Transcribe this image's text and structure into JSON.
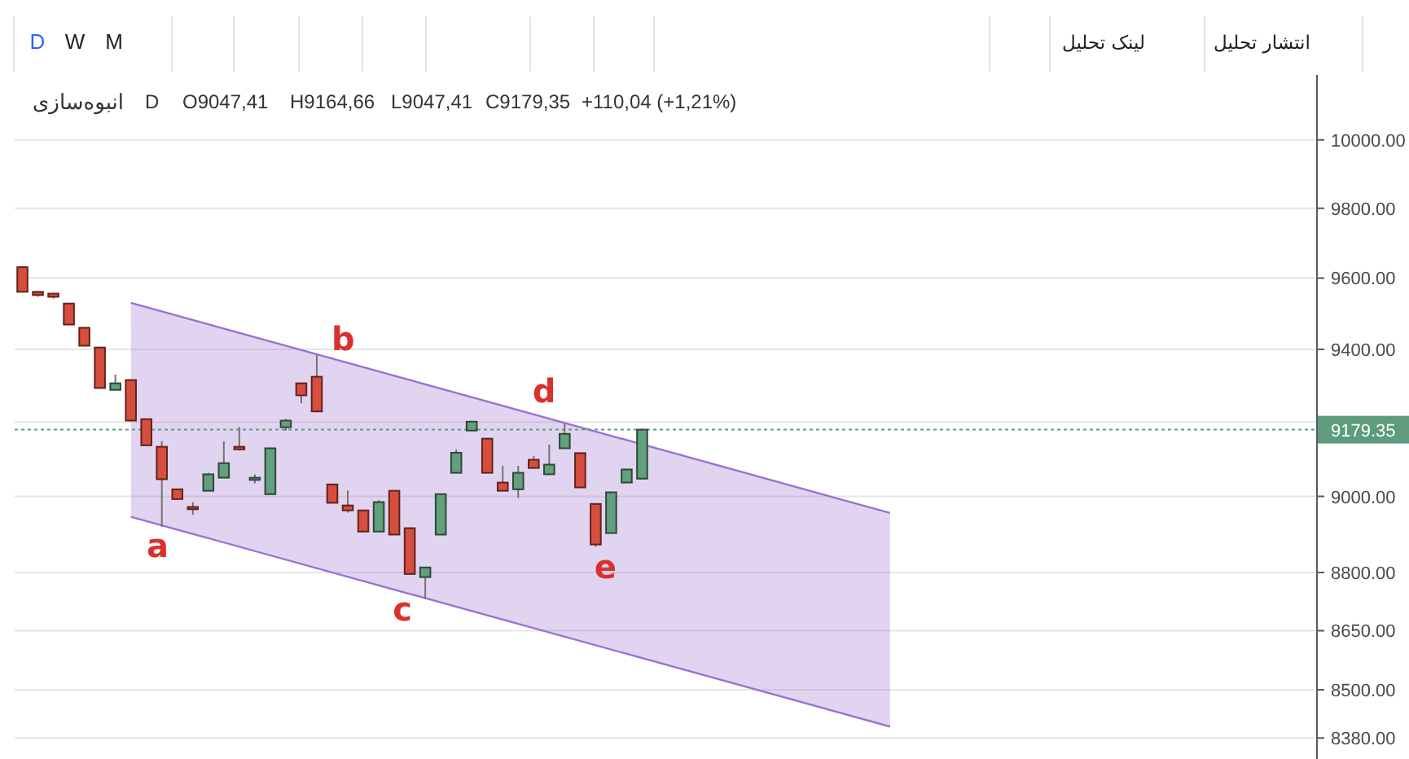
{
  "chart_data": {
    "type": "candlestick",
    "title": "انبوه‌سازی",
    "subtitle": "D",
    "annotations": [
      "O9047,41",
      "H9164,66",
      "L9047,41",
      "C9179,35",
      "+110,04 (+1,21%)",
      "D",
      "W",
      "M",
      "لینک تحلیل",
      "انتشار تحلیل",
      "a",
      "b",
      "c",
      "d",
      "e"
    ],
    "categories": [
      null,
      null,
      null,
      null,
      null,
      null,
      null,
      null,
      null,
      null,
      null,
      null,
      null,
      null,
      null,
      null,
      null,
      null,
      null,
      null,
      null,
      null,
      null,
      null,
      null,
      null,
      null,
      null,
      null,
      null,
      null,
      null,
      null,
      null,
      null,
      null,
      null,
      null,
      null,
      null,
      null,
      null,
      null,
      null,
      null,
      null,
      null,
      null,
      null,
      null,
      null,
      null,
      null,
      null,
      null,
      null,
      null,
      null,
      null,
      null,
      null,
      null,
      null,
      null,
      null,
      null,
      null,
      null,
      null,
      null,
      null,
      null,
      null,
      null,
      null,
      null,
      null,
      null,
      null,
      null,
      null,
      null,
      null,
      null
    ],
    "ohlc": [
      [
        9631,
        9631,
        9561,
        9561
      ],
      [
        9561,
        9561,
        9547,
        9552
      ],
      [
        9556,
        9556,
        9542,
        9547
      ],
      [
        9528,
        9528,
        9469,
        9469
      ],
      [
        9460,
        9460,
        9410,
        9410
      ],
      [
        9405,
        9405,
        9293,
        9293
      ],
      [
        9288,
        9330,
        9288,
        9306
      ],
      [
        9315,
        9315,
        9204,
        9204
      ],
      [
        9208,
        9208,
        9137,
        9137
      ],
      [
        9133,
        9148,
        8920,
        9046
      ],
      [
        9019,
        9019,
        8993,
        8993
      ],
      [
        8972,
        8985,
        8951,
        8966
      ],
      [
        9015,
        9063,
        9015,
        9059
      ],
      [
        9050,
        9148,
        9050,
        9089
      ],
      [
        9133,
        9186,
        9123,
        9126
      ],
      [
        9044,
        9059,
        9035,
        9050
      ],
      [
        9006,
        9129,
        9006,
        9129
      ],
      [
        9186,
        9209,
        9177,
        9204
      ],
      [
        9306,
        9306,
        9251,
        9273
      ],
      [
        9324,
        9384,
        9229,
        9229
      ],
      [
        9032,
        9032,
        8983,
        8983
      ],
      [
        8976,
        9016,
        8957,
        8963
      ],
      [
        8963,
        8963,
        8907,
        8907
      ],
      [
        8907,
        8990,
        8907,
        8985
      ],
      [
        9015,
        9015,
        8899,
        8899
      ],
      [
        8916,
        8916,
        8796,
        8796
      ],
      [
        8788,
        8813,
        8732,
        8813
      ],
      [
        8899,
        9006,
        8899,
        9006
      ],
      [
        9063,
        9126,
        9063,
        9117
      ],
      [
        9177,
        9204,
        9177,
        9201
      ],
      [
        9155,
        9155,
        9063,
        9063
      ],
      [
        9037,
        9082,
        9015,
        9015
      ],
      [
        9019,
        9082,
        8996,
        9063
      ],
      [
        9098,
        9108,
        9076,
        9076
      ],
      [
        9059,
        9139,
        9059,
        9085
      ],
      [
        9129,
        9196,
        9129,
        9168
      ],
      [
        9116,
        9116,
        9024,
        9024
      ],
      [
        8980,
        8980,
        8867,
        8873
      ],
      [
        8903,
        9011,
        8903,
        9011
      ],
      [
        9037,
        9072,
        9037,
        9072
      ],
      [
        9047.41,
        9179.35,
        9047.41,
        9179.35
      ],
      null,
      null,
      null,
      null,
      null,
      null,
      null,
      null,
      null,
      null,
      null,
      null,
      null,
      null,
      null,
      null,
      null,
      null,
      null,
      null,
      null,
      null,
      null,
      null,
      null,
      null,
      null,
      null,
      null,
      null,
      null,
      null,
      null,
      null,
      null,
      null,
      null,
      null,
      null,
      null,
      null,
      null,
      null
    ],
    "colors": [
      "#d64e3e",
      "#d64e3e",
      "#d64e3e",
      "#d64e3e",
      "#d64e3e",
      "#d64e3e",
      "#63a07d",
      "#d64e3e",
      "#d64e3e",
      "#d64e3e",
      "#d64e3e",
      "#d64e3e",
      "#63a07d",
      "#63a07d",
      "#d64e3e",
      "#63a07d",
      "#63a07d",
      "#63a07d",
      "#d64e3e",
      "#d64e3e",
      "#d64e3e",
      "#d64e3e",
      "#d64e3e",
      "#63a07d",
      "#d64e3e",
      "#d64e3e",
      "#63a07d",
      "#63a07d",
      "#63a07d",
      "#63a07d",
      "#d64e3e",
      "#d64e3e",
      "#63a07d",
      "#d64e3e",
      "#63a07d",
      "#63a07d",
      "#d64e3e",
      "#d64e3e",
      "#63a07d",
      "#63a07d",
      "#63a07d",
      null,
      null,
      null,
      null,
      null,
      null,
      null,
      null,
      null,
      null,
      null,
      null,
      null,
      null,
      null,
      null,
      null,
      null,
      null,
      null,
      null,
      null,
      null,
      null,
      null,
      null,
      null,
      null,
      null,
      null,
      null,
      null,
      null,
      null,
      null,
      null,
      null,
      null,
      null,
      null,
      null,
      null,
      null
    ],
    "series": [
      {
        "type": "line",
        "color": "#9b72cf",
        "values": [
          null,
          null,
          null,
          null,
          null,
          null,
          null,
          9530,
          null,
          null,
          null,
          null,
          null,
          null,
          null,
          null,
          null,
          null,
          null,
          null,
          null,
          null,
          null,
          null,
          null,
          null,
          null,
          null,
          null,
          null,
          null,
          null,
          null,
          null,
          null,
          null,
          null,
          null,
          null,
          null,
          null,
          null,
          null,
          null,
          null,
          null,
          null,
          null,
          null,
          null,
          null,
          null,
          null,
          null,
          null,
          null,
          8956,
          null,
          null,
          null,
          null,
          null,
          null,
          null,
          null,
          null,
          null,
          null,
          null,
          null,
          null,
          null,
          null,
          null,
          null,
          null,
          null,
          null,
          null,
          null,
          null,
          null,
          null,
          null
        ],
        "lower": [
          null,
          null,
          null,
          null,
          null,
          null,
          null,
          8946,
          null,
          null,
          null,
          null,
          null,
          null,
          null,
          null,
          null,
          null,
          null,
          null,
          null,
          null,
          null,
          null,
          null,
          null,
          null,
          null,
          null,
          null,
          null,
          null,
          null,
          null,
          null,
          null,
          null,
          null,
          null,
          null,
          null,
          null,
          null,
          null,
          null,
          null,
          null,
          null,
          null,
          null,
          null,
          null,
          null,
          null,
          null,
          null,
          8408,
          null,
          null,
          null,
          null,
          null,
          null,
          null,
          null,
          null,
          null,
          null,
          null,
          null,
          null,
          null,
          null,
          null,
          null,
          null,
          null,
          null,
          null,
          null,
          null,
          null,
          null,
          null
        ],
        "upper": [
          null,
          null,
          null,
          null,
          null,
          null,
          null,
          9530,
          null,
          null,
          null,
          null,
          null,
          null,
          null,
          null,
          null,
          null,
          null,
          null,
          null,
          null,
          null,
          null,
          null,
          null,
          null,
          null,
          null,
          null,
          null,
          null,
          null,
          null,
          null,
          null,
          null,
          null,
          null,
          null,
          null,
          null,
          null,
          null,
          null,
          null,
          null,
          null,
          null,
          null,
          null,
          null,
          null,
          null,
          null,
          null,
          8956,
          null,
          null,
          null,
          null,
          null,
          null,
          null,
          null,
          null,
          null,
          null,
          null,
          null,
          null,
          null,
          null,
          null,
          null,
          null,
          null,
          null,
          null,
          null,
          null,
          null,
          null,
          null
        ]
      }
    ],
    "ref_lines": [
      {
        "axis": "y",
        "value": 9179.35,
        "label": "9179.35",
        "color": "#5d9c7c",
        "line_style": "dotted"
      }
    ],
    "ylim": [
      8328,
      10194
    ],
    "yticks": [
      {
        "value": 8380,
        "label": "8380.00"
      },
      {
        "value": 8500,
        "label": "8500.00"
      },
      {
        "value": 8650,
        "label": "8650.00"
      },
      {
        "value": 8800,
        "label": "8800.00"
      },
      {
        "value": 9000,
        "label": "9000.00"
      },
      {
        "value": 9200,
        "label": null
      },
      {
        "value": 9400,
        "label": "9400.00"
      },
      {
        "value": 9600,
        "label": "9600.00"
      },
      {
        "value": 9800,
        "label": "9800.00"
      },
      {
        "value": 10000,
        "label": "10000.00"
      }
    ],
    "log": true,
    "grid": "y"
  }
}
